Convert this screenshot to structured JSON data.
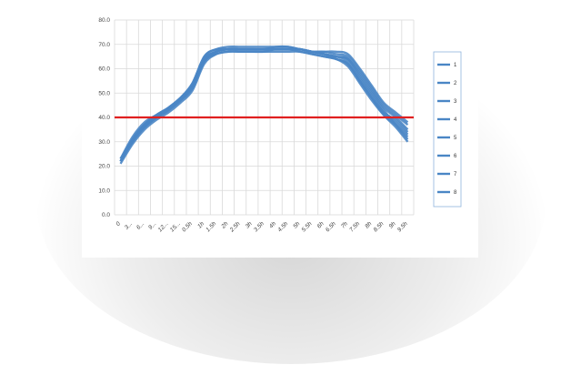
{
  "chart_data": {
    "type": "line",
    "title": "",
    "xlabel": "",
    "ylabel": "",
    "ylim": [
      0,
      80
    ],
    "y_ticks": [
      "0.0",
      "10.0",
      "20.0",
      "30.0",
      "40.0",
      "50.0",
      "60.0",
      "70.0",
      "80.0"
    ],
    "categories": [
      "0",
      "3...",
      "6...",
      "9...",
      "12...",
      "15...",
      "0.5h",
      "1h",
      "1.5h",
      "2h",
      "2.5h",
      "3h",
      "3.5h",
      "4h",
      "4.5h",
      "5h",
      "5.5h",
      "6h",
      "6.5h",
      "7h",
      "7.5h",
      "8h",
      "8.5h",
      "9h",
      "9.5h"
    ],
    "reference_line": {
      "value": 40,
      "color": "#e02020"
    },
    "grid": true,
    "legend_position": "right",
    "series": [
      {
        "name": "1",
        "values": [
          22,
          30,
          36,
          40,
          43,
          47,
          53,
          64,
          67,
          68,
          68,
          68,
          68,
          68,
          68,
          68,
          67,
          66,
          65,
          64,
          57,
          50,
          43,
          37,
          31
        ]
      },
      {
        "name": "2",
        "values": [
          22,
          31,
          37,
          40,
          43,
          47,
          52,
          63,
          67,
          68,
          68,
          68,
          68,
          68,
          68,
          68,
          67,
          66,
          65,
          63,
          56,
          49,
          42,
          38,
          33
        ]
      },
      {
        "name": "3",
        "values": [
          23,
          32,
          38,
          41,
          44,
          48,
          54,
          65,
          68,
          69,
          69,
          69,
          69,
          69,
          69,
          68,
          67,
          66,
          65,
          64,
          58,
          51,
          44,
          40,
          35
        ]
      },
      {
        "name": "4",
        "values": [
          21,
          29,
          35,
          39,
          42,
          46,
          51,
          62,
          66,
          67,
          67,
          67,
          67,
          67,
          67,
          67,
          66,
          65,
          64,
          62,
          55,
          48,
          41,
          36,
          30
        ]
      },
      {
        "name": "5",
        "values": [
          22,
          31,
          37,
          41,
          44,
          48,
          53,
          64,
          67,
          68,
          68,
          68,
          68,
          68,
          68,
          68,
          67,
          67,
          66,
          65,
          59,
          52,
          45,
          41,
          37
        ]
      },
      {
        "name": "6",
        "values": [
          22,
          30,
          36,
          40,
          43,
          47,
          53,
          63,
          67,
          68,
          68,
          68,
          68,
          68,
          68,
          68,
          67,
          67,
          67,
          66,
          60,
          53,
          46,
          42,
          38
        ]
      },
      {
        "name": "7",
        "values": [
          23,
          31,
          37,
          41,
          44,
          48,
          54,
          65,
          68,
          68,
          68,
          68,
          68,
          69,
          69,
          68,
          67,
          66,
          64,
          62,
          55,
          48,
          42,
          39,
          34
        ]
      },
      {
        "name": "8",
        "values": [
          22,
          30,
          36,
          40,
          43,
          47,
          52,
          63,
          66,
          67,
          67,
          67,
          67,
          68,
          68,
          67,
          66,
          65,
          64,
          61,
          54,
          47,
          41,
          37,
          32
        ]
      }
    ],
    "colors": {
      "series": "#4a86c5",
      "reference": "#e02020",
      "grid": "#d9d9d9"
    }
  }
}
